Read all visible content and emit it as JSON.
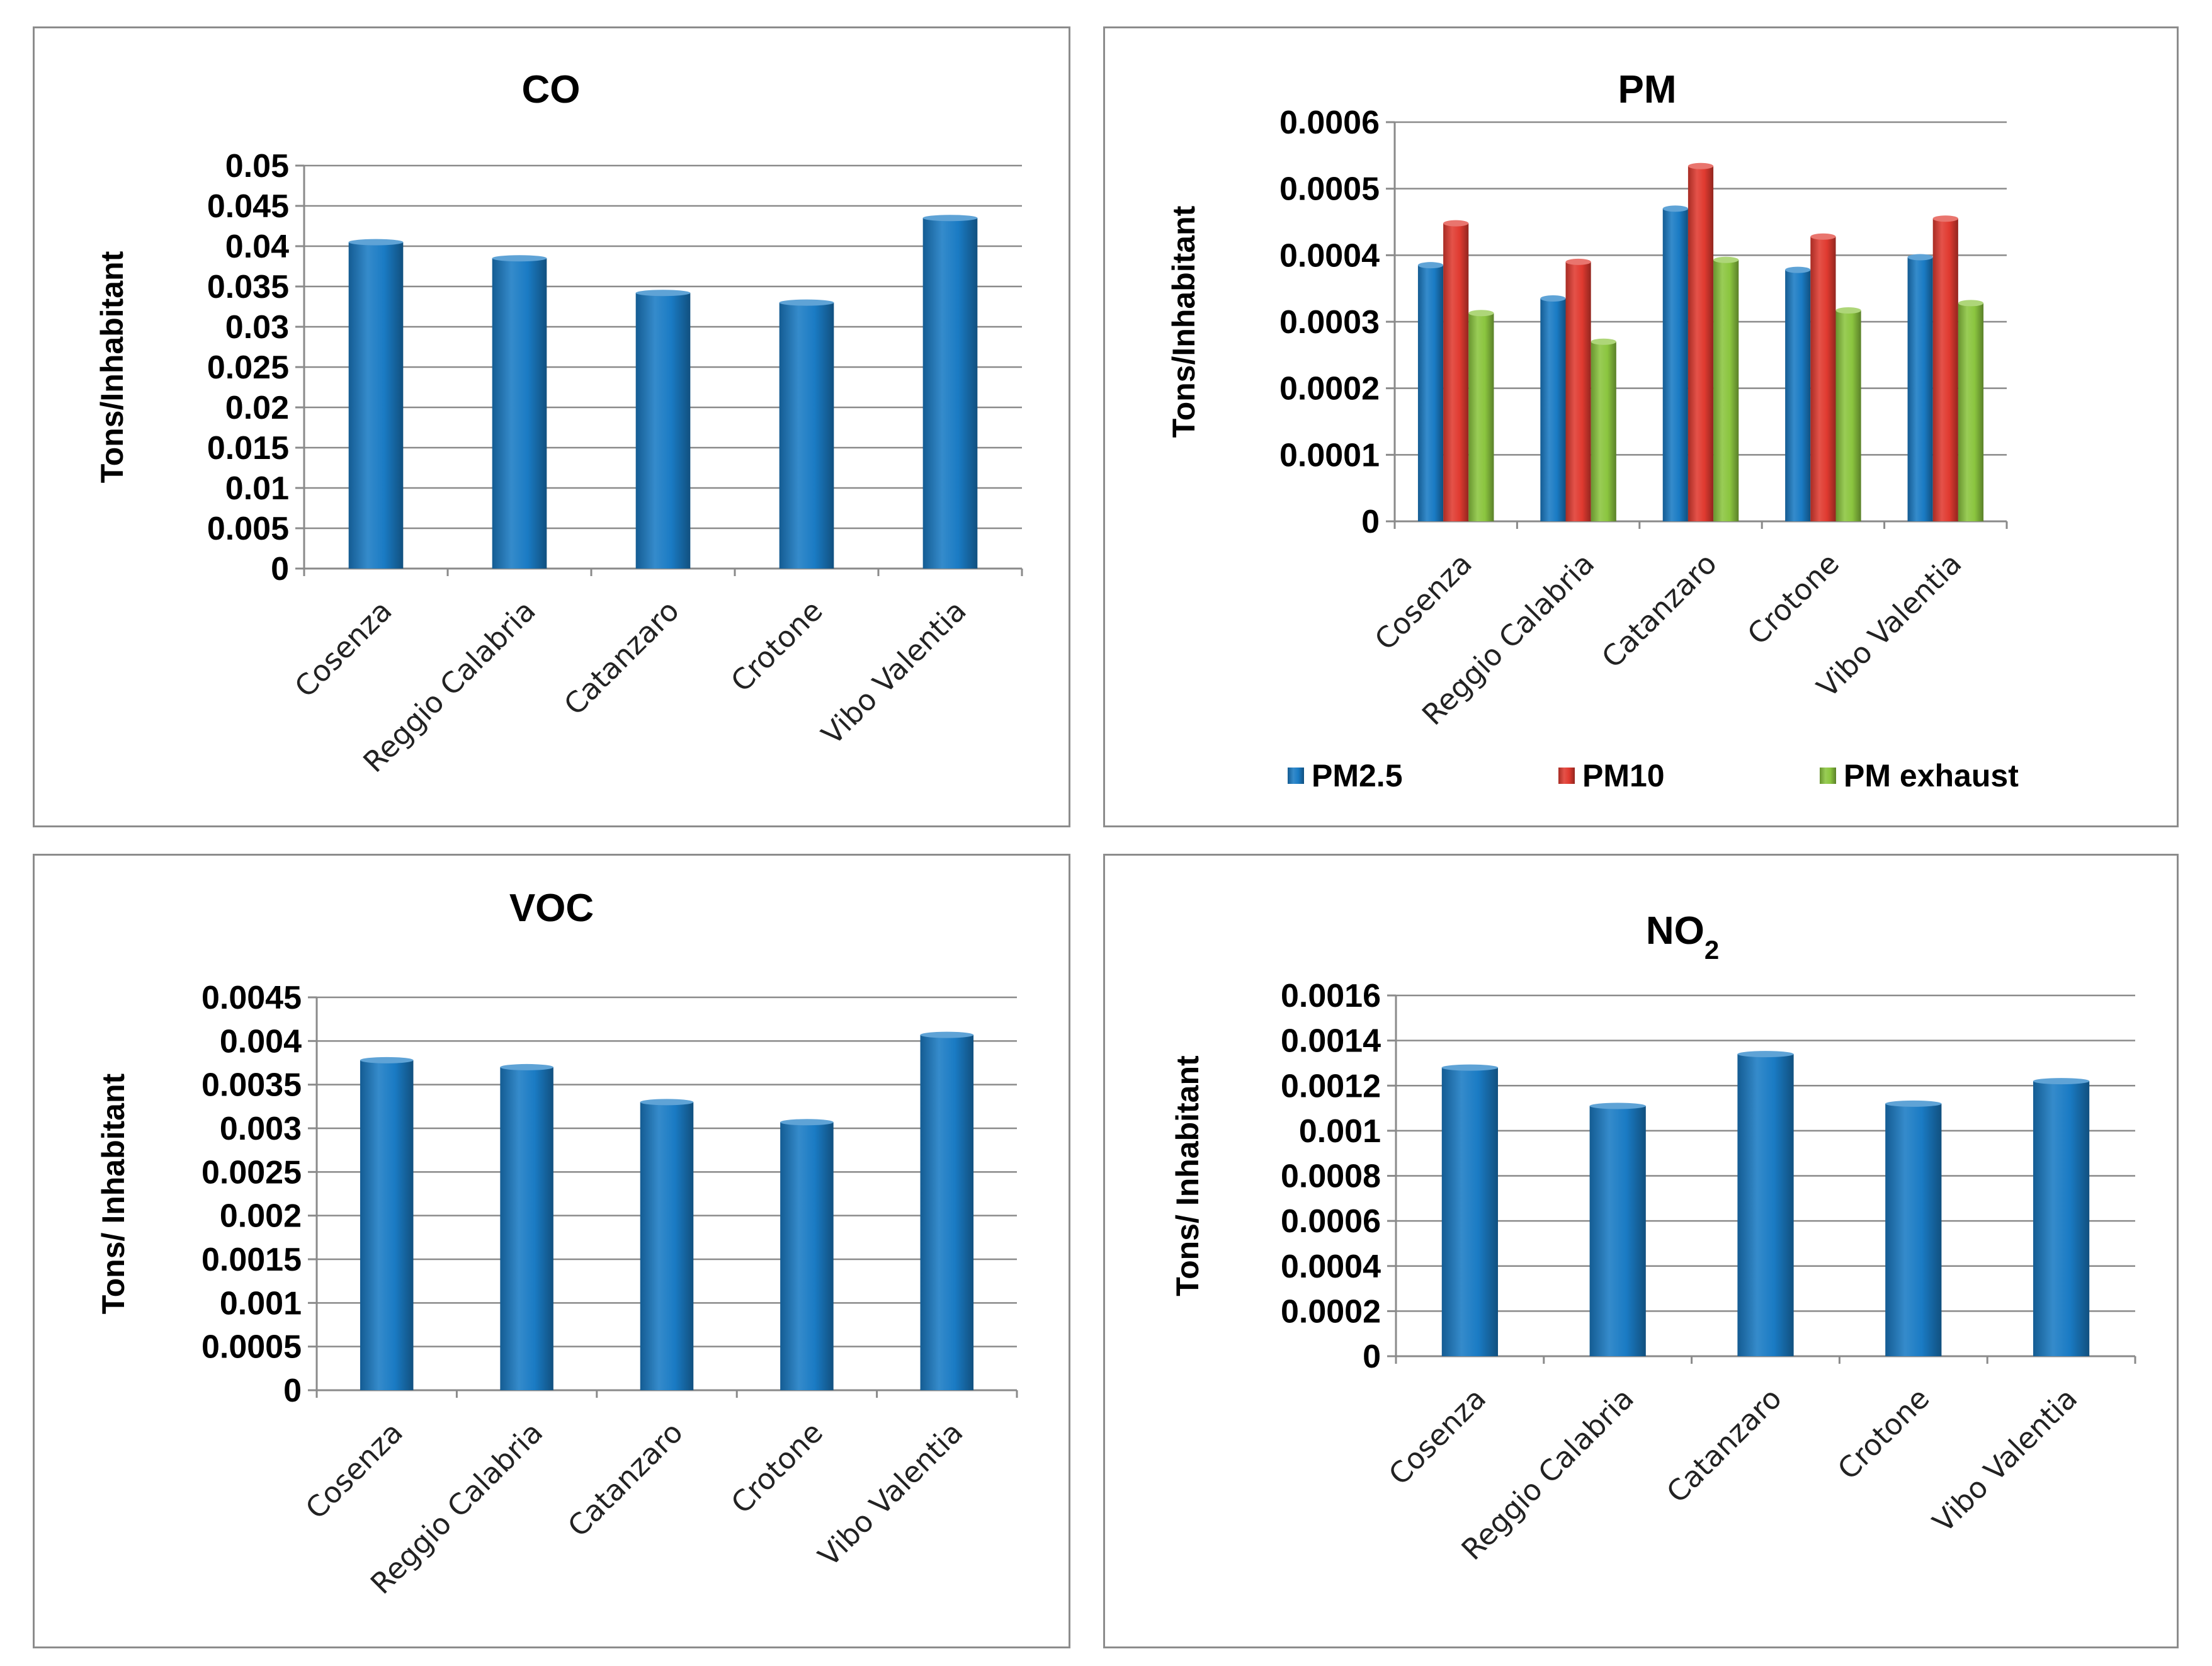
{
  "chart_data": [
    {
      "id": "co",
      "type": "bar",
      "title": "CO",
      "title_sub": "",
      "ylabel": "Tons/Inhabitant",
      "xlabel": "",
      "categories": [
        "Cosenza",
        "Reggio Calabria",
        "Catanzaro",
        "Crotone",
        "Vibo Valentia"
      ],
      "ylim": [
        0,
        0.05
      ],
      "yticks": [
        "0",
        "0.005",
        "0.01",
        "0.015",
        "0.02",
        "0.025",
        "0.03",
        "0.035",
        "0.04",
        "0.045",
        "0.05"
      ],
      "grid": true,
      "series": [
        {
          "name": "CO",
          "color": "#1a7bc4",
          "values": [
            0.0405,
            0.0385,
            0.0342,
            0.033,
            0.0435
          ]
        }
      ]
    },
    {
      "id": "pm",
      "type": "bar",
      "title": "PM",
      "title_sub": "",
      "ylabel": "Tons/Inhabitant",
      "xlabel": "",
      "categories": [
        "Cosenza",
        "Reggio Calabria",
        "Catanzaro",
        "Crotone",
        "Vibo Valentia"
      ],
      "ylim": [
        0,
        0.0006
      ],
      "yticks": [
        "0",
        "0.0001",
        "0.0002",
        "0.0003",
        "0.0004",
        "0.0005",
        "0.0006"
      ],
      "grid": true,
      "legend_position": "bottom",
      "series": [
        {
          "name": "PM2.5",
          "color": "#1a7bc4",
          "values": [
            0.000385,
            0.000335,
            0.00047,
            0.000378,
            0.000397
          ]
        },
        {
          "name": "PM10",
          "color": "#e03a30",
          "values": [
            0.000448,
            0.00039,
            0.000534,
            0.000428,
            0.000455
          ]
        },
        {
          "name": "PM exhaust",
          "color": "#8bc53f",
          "values": [
            0.000313,
            0.00027,
            0.000393,
            0.000317,
            0.000328
          ]
        }
      ]
    },
    {
      "id": "voc",
      "type": "bar",
      "title": "VOC",
      "title_sub": "",
      "ylabel": "Tons/ Inhabitant",
      "xlabel": "",
      "categories": [
        "Cosenza",
        "Reggio Calabria",
        "Catanzaro",
        "Crotone",
        "Vibo Valentia"
      ],
      "ylim": [
        0,
        0.0045
      ],
      "yticks": [
        "0",
        "0.0005",
        "0.001",
        "0.0015",
        "0.002",
        "0.0025",
        "0.003",
        "0.0035",
        "0.004",
        "0.0045"
      ],
      "grid": true,
      "series": [
        {
          "name": "VOC",
          "color": "#1a7bc4",
          "values": [
            0.00378,
            0.0037,
            0.0033,
            0.00307,
            0.00407
          ]
        }
      ]
    },
    {
      "id": "no2",
      "type": "bar",
      "title": "NO",
      "title_sub": "2",
      "ylabel": "Tons/ Inhabitant",
      "xlabel": "",
      "categories": [
        "Cosenza",
        "Reggio Calabria",
        "Catanzaro",
        "Crotone",
        "Vibo Valentia"
      ],
      "ylim": [
        0,
        0.0016
      ],
      "yticks": [
        "0",
        "0.0002",
        "0.0004",
        "0.0006",
        "0.0008",
        "0.001",
        "0.0012",
        "0.0014",
        "0.0016"
      ],
      "grid": true,
      "series": [
        {
          "name": "NO2",
          "color": "#1a7bc4",
          "values": [
            0.00128,
            0.00111,
            0.00134,
            0.00112,
            0.00122
          ]
        }
      ]
    }
  ]
}
